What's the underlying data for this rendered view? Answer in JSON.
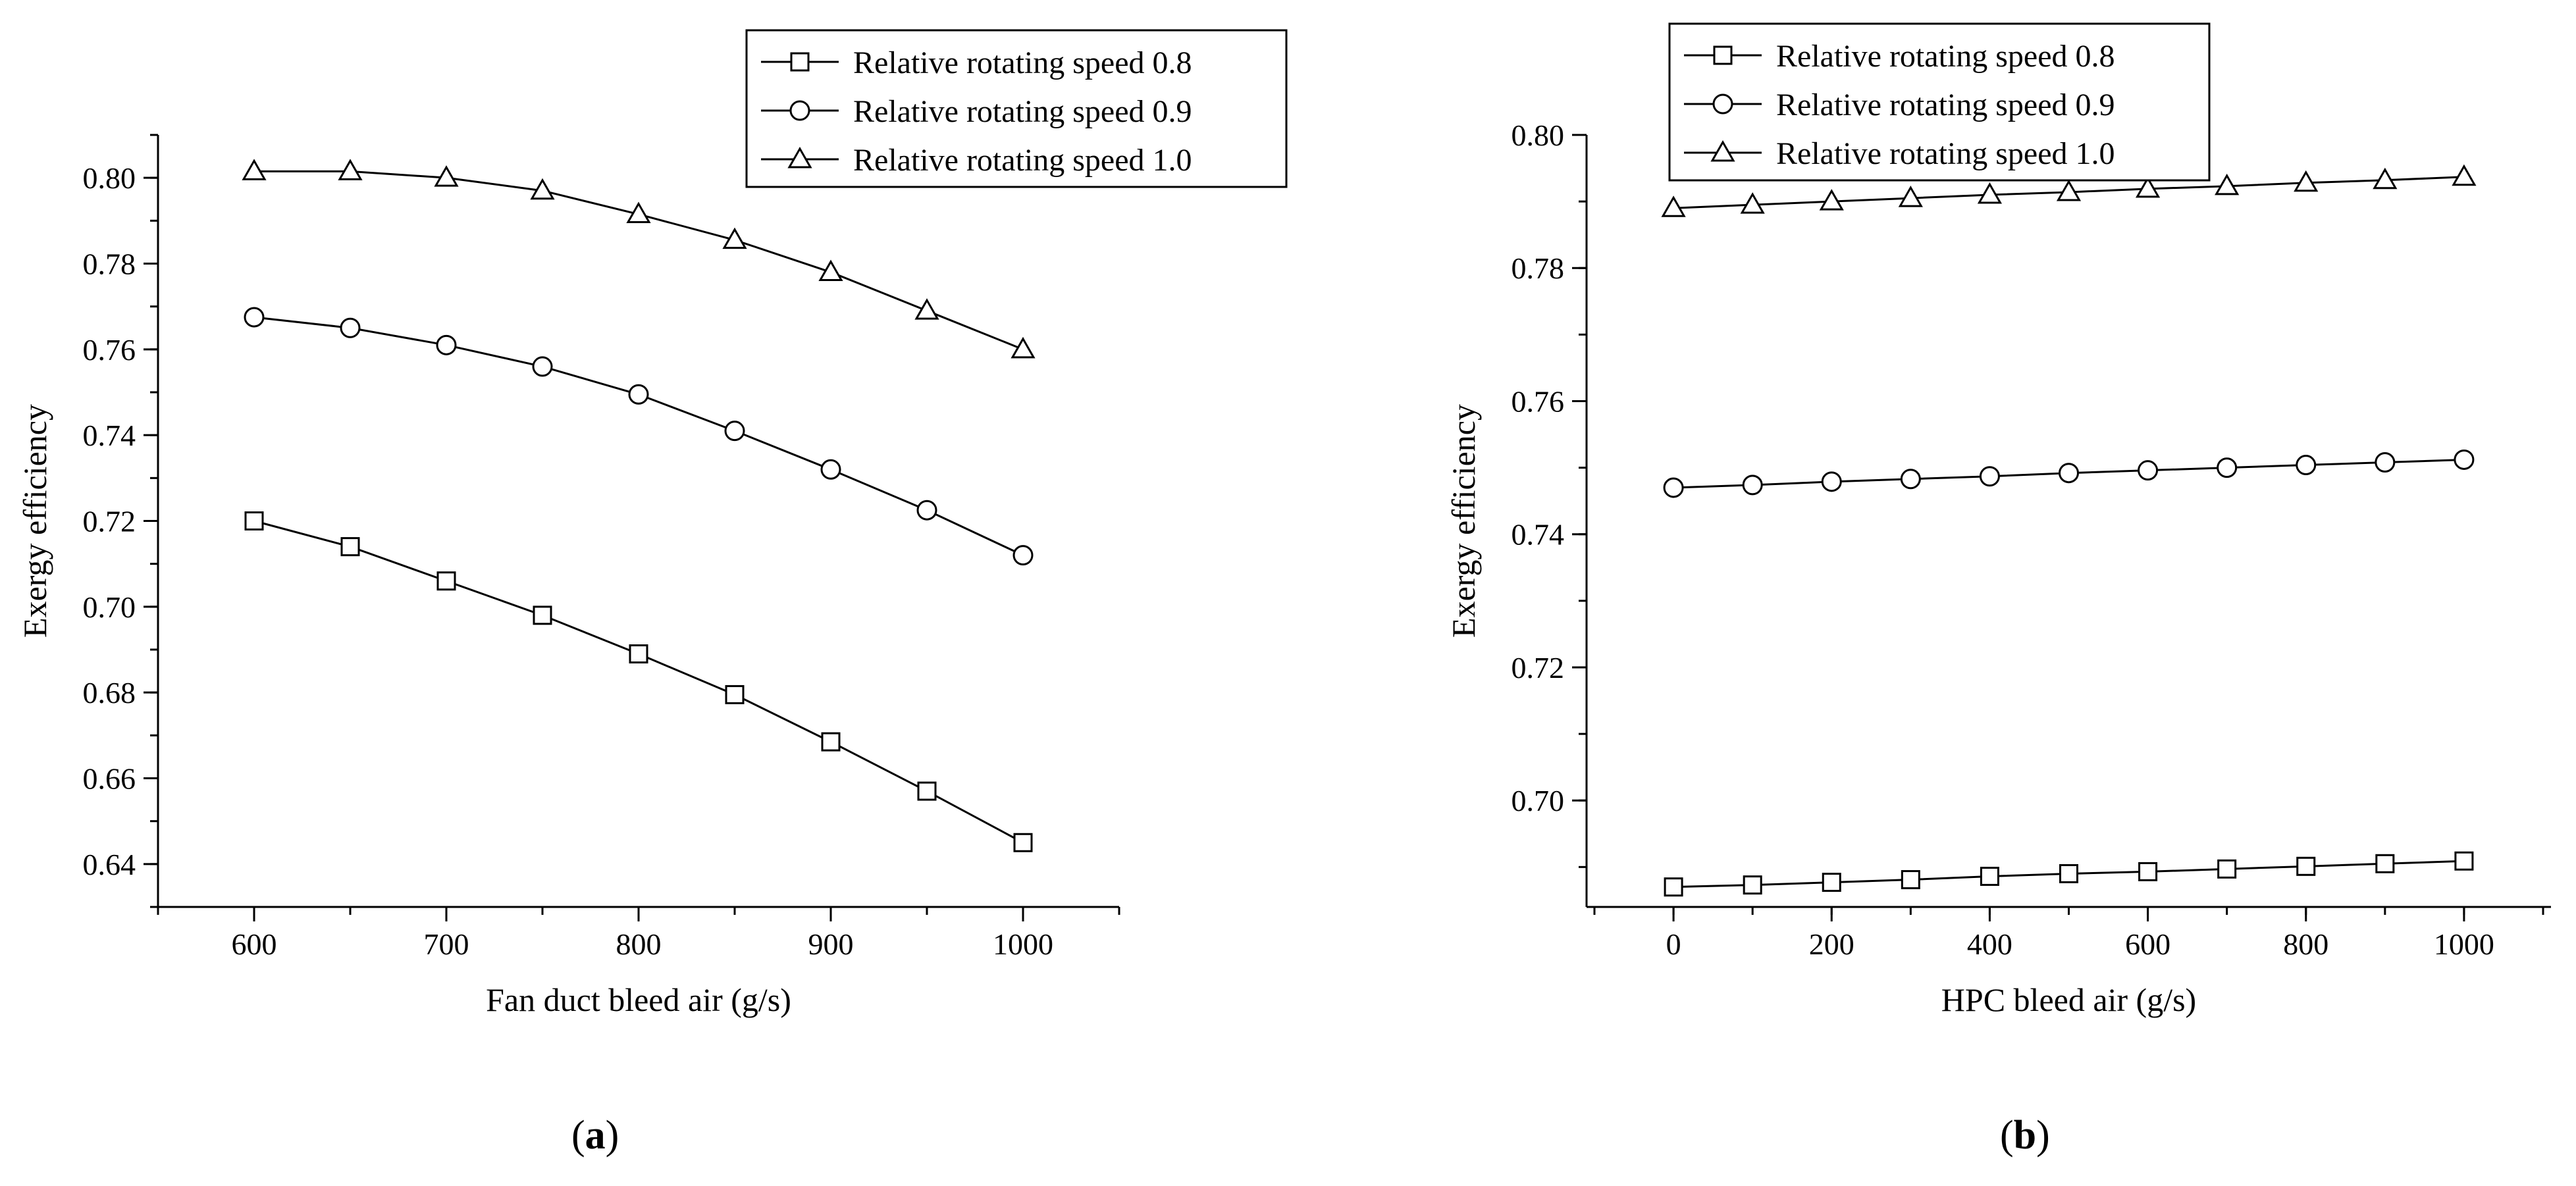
{
  "chart_data": [
    {
      "type": "line",
      "panel": "a",
      "xlabel": "Fan duct bleed air (g/s)",
      "ylabel": "Exergy efficiency",
      "xlim": [
        550,
        1050
      ],
      "ylim": [
        0.63,
        0.81
      ],
      "xticks": [
        600,
        700,
        800,
        900,
        1000
      ],
      "yticks": [
        0.64,
        0.66,
        0.68,
        0.7,
        0.72,
        0.74,
        0.76,
        0.78,
        0.8
      ],
      "tick_decimals": 2,
      "grid": false,
      "legend_position": "top-right",
      "x": [
        600,
        650,
        700,
        750,
        800,
        850,
        900,
        950,
        1000
      ],
      "series": [
        {
          "name": "Relative rotating speed 0.8",
          "marker": "square",
          "values": [
            0.72,
            0.714,
            0.706,
            0.698,
            0.689,
            0.6795,
            0.6685,
            0.657,
            0.645
          ]
        },
        {
          "name": "Relative rotating speed 0.9",
          "marker": "circle",
          "values": [
            0.7675,
            0.765,
            0.761,
            0.756,
            0.7495,
            0.741,
            0.732,
            0.7225,
            0.712
          ]
        },
        {
          "name": "Relative rotating speed 1.0",
          "marker": "triangle",
          "values": [
            0.8015,
            0.8015,
            0.8,
            0.797,
            0.7915,
            0.7855,
            0.778,
            0.769,
            0.76
          ]
        }
      ]
    },
    {
      "type": "line",
      "panel": "b",
      "xlabel": "HPC bleed air (g/s)",
      "ylabel": "Exergy efficiency",
      "xlim": [
        -110,
        1110
      ],
      "ylim": [
        0.684,
        0.8
      ],
      "xticks": [
        0,
        200,
        400,
        600,
        800,
        1000
      ],
      "yticks": [
        0.7,
        0.72,
        0.74,
        0.76,
        0.78,
        0.8
      ],
      "tick_decimals": 2,
      "grid": false,
      "legend_position": "top-left",
      "x": [
        0,
        100,
        200,
        300,
        400,
        500,
        600,
        700,
        800,
        900,
        1000
      ],
      "series": [
        {
          "name": "Relative rotating speed 0.8",
          "marker": "square",
          "values": [
            0.687,
            0.6873,
            0.6877,
            0.6881,
            0.6886,
            0.689,
            0.6893,
            0.6897,
            0.6901,
            0.6905,
            0.6909
          ]
        },
        {
          "name": "Relative rotating speed 0.9",
          "marker": "circle",
          "values": [
            0.747,
            0.7474,
            0.7479,
            0.7483,
            0.7487,
            0.7492,
            0.7496,
            0.75,
            0.7504,
            0.7508,
            0.7512
          ]
        },
        {
          "name": "Relative rotating speed 1.0",
          "marker": "triangle",
          "values": [
            0.789,
            0.7895,
            0.79,
            0.7905,
            0.791,
            0.7914,
            0.7919,
            0.7923,
            0.7928,
            0.7932,
            0.7937
          ]
        }
      ]
    }
  ],
  "captions": {
    "a": "a",
    "b": "b"
  }
}
